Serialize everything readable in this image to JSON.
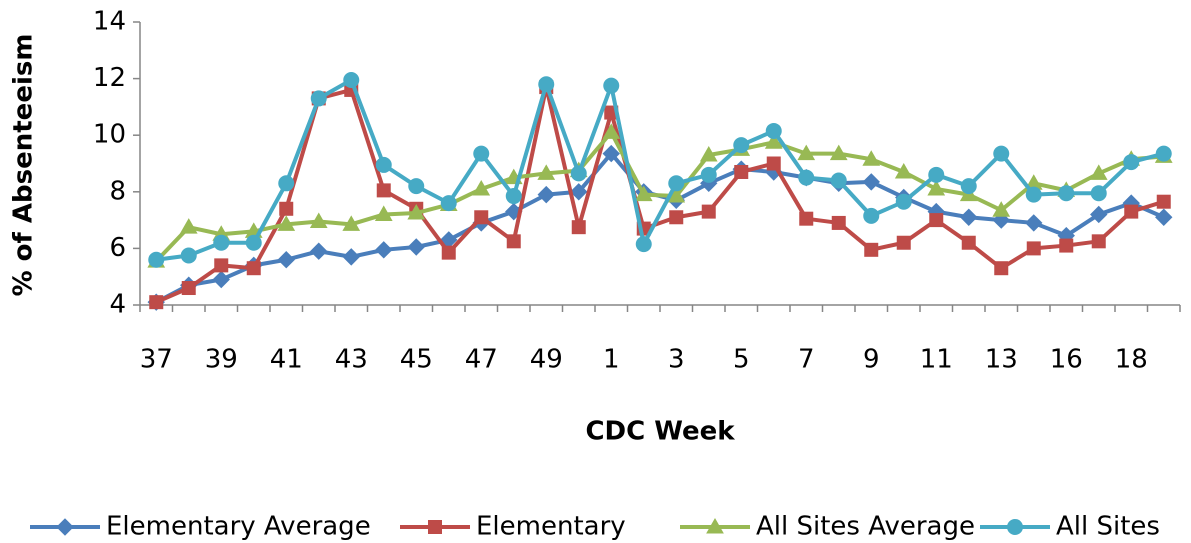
{
  "chart_data": {
    "type": "line",
    "x_label": "CDC Week",
    "y_label": "% of Absenteeism",
    "categories": [
      "37",
      null,
      "39",
      null,
      "41",
      null,
      "43",
      null,
      "45",
      null,
      "47",
      null,
      "49",
      null,
      "1",
      null,
      "3",
      null,
      "5",
      null,
      "7",
      null,
      "9",
      null,
      "11",
      null,
      "13",
      null,
      "16",
      null,
      "18",
      null
    ],
    "ylim": [
      4,
      14
    ],
    "yticks": [
      4,
      6,
      8,
      10,
      12,
      14
    ],
    "grid": false,
    "legend": "bottom",
    "series": [
      {
        "name": "Elementary Average",
        "color": "#4a7ebb",
        "marker": "diamond",
        "values": [
          4.1,
          4.7,
          4.9,
          5.4,
          5.6,
          5.9,
          5.7,
          5.95,
          6.05,
          6.3,
          6.9,
          7.3,
          7.9,
          8.0,
          9.35,
          8.0,
          7.7,
          8.3,
          8.8,
          8.7,
          8.5,
          8.3,
          8.35,
          7.8,
          7.3,
          7.1,
          7.0,
          6.9,
          6.45,
          7.2,
          7.6,
          7.1
        ]
      },
      {
        "name": "Elementary",
        "color": "#be4b48",
        "marker": "square",
        "values": [
          4.1,
          4.6,
          5.4,
          5.3,
          7.4,
          11.3,
          11.6,
          8.05,
          7.4,
          5.85,
          7.1,
          6.25,
          11.7,
          6.75,
          10.8,
          6.7,
          7.1,
          7.3,
          8.7,
          9.0,
          7.05,
          6.9,
          5.95,
          6.2,
          7.0,
          6.2,
          5.3,
          6.0,
          6.1,
          6.25,
          7.3,
          7.65
        ]
      },
      {
        "name": "All Sites Average",
        "color": "#98b954",
        "marker": "triangle",
        "values": [
          5.55,
          6.75,
          6.5,
          6.6,
          6.85,
          6.95,
          6.85,
          7.2,
          7.25,
          7.55,
          8.1,
          8.5,
          8.65,
          8.75,
          10.1,
          7.9,
          7.85,
          9.3,
          9.5,
          9.75,
          9.35,
          9.35,
          9.15,
          8.7,
          8.1,
          7.9,
          7.35,
          8.3,
          8.05,
          8.65,
          9.15,
          9.25
        ]
      },
      {
        "name": "All Sites",
        "color": "#46aac5",
        "marker": "circle",
        "values": [
          5.6,
          5.75,
          6.2,
          6.2,
          8.3,
          11.3,
          11.95,
          8.95,
          8.2,
          7.6,
          9.35,
          7.85,
          11.8,
          8.65,
          11.75,
          6.15,
          8.3,
          8.6,
          9.65,
          10.15,
          8.5,
          8.4,
          7.15,
          7.65,
          8.6,
          8.2,
          9.35,
          7.9,
          7.95,
          7.95,
          9.05,
          9.35
        ]
      }
    ]
  }
}
